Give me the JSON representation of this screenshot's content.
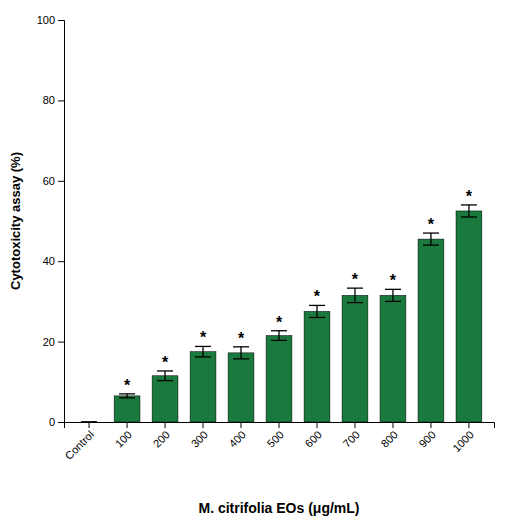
{
  "chart_data": {
    "type": "bar",
    "categories": [
      "Control",
      "100",
      "200",
      "300",
      "400",
      "500",
      "600",
      "700",
      "800",
      "900",
      "1000"
    ],
    "values": [
      0.0,
      6.5,
      11.5,
      17.5,
      17.2,
      21.5,
      27.5,
      31.5,
      31.5,
      45.5,
      52.5
    ],
    "errors": [
      0.0,
      0.5,
      1.2,
      1.3,
      1.5,
      1.2,
      1.5,
      1.8,
      1.5,
      1.5,
      1.5
    ],
    "annotations": [
      null,
      "*",
      "*",
      "*",
      "*",
      "*",
      "*",
      "*",
      "*",
      "*",
      "*"
    ],
    "color": "#1a7a3e",
    "ylabel": "Cytotoxicity assay (%)",
    "xlabel": "M. citrifolia EOs (μg/mL)",
    "ylim": [
      0,
      100
    ],
    "yticks": [
      0,
      20,
      40,
      60,
      80,
      100
    ],
    "grid": false
  }
}
